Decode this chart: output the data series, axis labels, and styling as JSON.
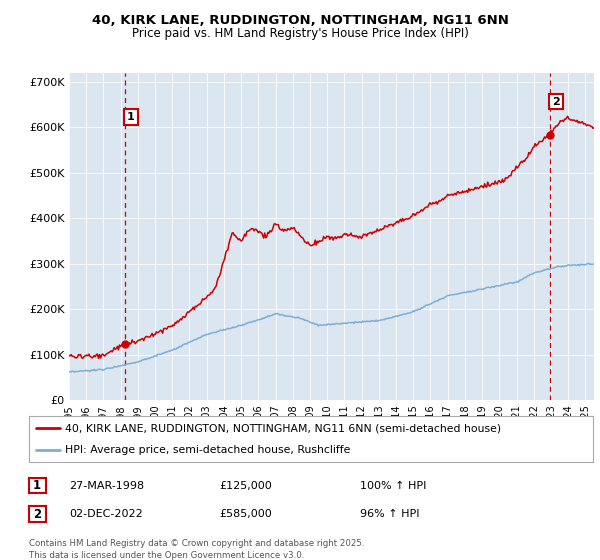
{
  "title1": "40, KIRK LANE, RUDDINGTON, NOTTINGHAM, NG11 6NN",
  "title2": "Price paid vs. HM Land Registry's House Price Index (HPI)",
  "background_color": "#dce6f1",
  "legend1": "40, KIRK LANE, RUDDINGTON, NOTTINGHAM, NG11 6NN (semi-detached house)",
  "legend2": "HPI: Average price, semi-detached house, Rushcliffe",
  "ann1_label": "1",
  "ann1_date": "27-MAR-1998",
  "ann1_price": "£125,000",
  "ann1_pct": "100% ↑ HPI",
  "ann2_label": "2",
  "ann2_date": "02-DEC-2022",
  "ann2_price": "£585,000",
  "ann2_pct": "96% ↑ HPI",
  "footer": "Contains HM Land Registry data © Crown copyright and database right 2025.\nThis data is licensed under the Open Government Licence v3.0.",
  "ylim": [
    0,
    720000
  ],
  "yticks": [
    0,
    100000,
    200000,
    300000,
    400000,
    500000,
    600000,
    700000
  ],
  "red_color": "#cc0000",
  "blue_color": "#7bafd4",
  "sale1_x": 1998.23,
  "sale2_x": 2022.92,
  "xmin": 1995.0,
  "xmax": 2025.5
}
